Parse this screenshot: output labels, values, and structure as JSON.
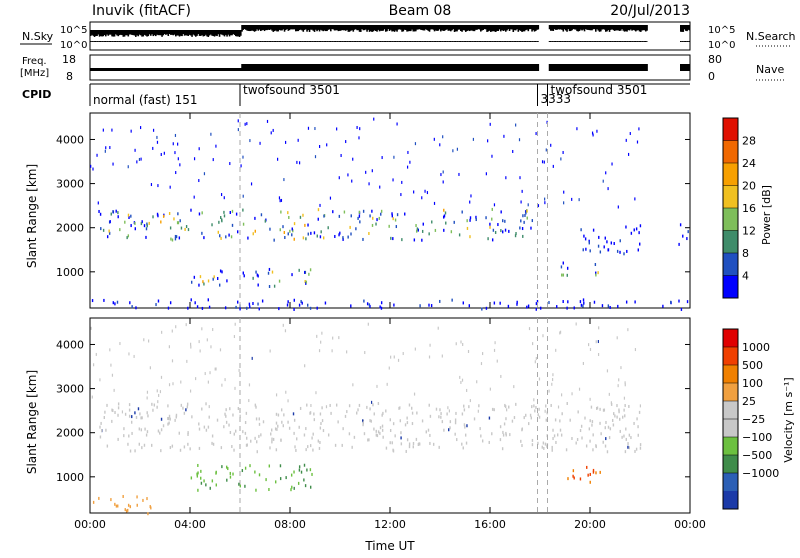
{
  "header": {
    "station": "Inuvik (fitACF)",
    "beam": "Beam 08",
    "date": "20/Jul/2013"
  },
  "top_panels": {
    "nsky_label": "N.Sky",
    "nsky_ticks": [
      "10^5",
      "10^0"
    ],
    "nsearch_label": "N.Search",
    "nsearch_ticks": [
      "10^5",
      "10^0"
    ],
    "freq_label": "Freq.",
    "freq_unit": "[MHz]",
    "freq_ticks": [
      "18",
      "8"
    ],
    "nave_label": "Nave",
    "nave_ticks": [
      "80",
      "0"
    ],
    "cpid_label": "CPID",
    "cpid_segments": [
      {
        "label": "normal (fast) 151",
        "start": 0.0,
        "end": 6.0
      },
      {
        "label": "twofsound 3501",
        "start": 6.0,
        "end": 17.9
      },
      {
        "label": "3333",
        "start": 17.9,
        "end": 18.3
      },
      {
        "label": "twofsound 3501",
        "start": 18.3,
        "end": 24.0
      }
    ]
  },
  "power_colorbar": {
    "label": "Power [dB]",
    "ticks": [
      "28",
      "24",
      "20",
      "16",
      "12",
      "8",
      "4"
    ],
    "colors": [
      "#0000ff",
      "#2050c0",
      "#3f8c6a",
      "#7ebe5a",
      "#f0c020",
      "#f7a000",
      "#f06800",
      "#e01000"
    ]
  },
  "velocity_colorbar": {
    "label": "Velocity [m s⁻¹]",
    "ticks": [
      "1000",
      "500",
      "100",
      "25",
      "−25",
      "−100",
      "−500",
      "−1000"
    ],
    "colors": [
      "#1b3aa8",
      "#2b5fb5",
      "#3f8c4a",
      "#6cc040",
      "#c8c8c8",
      "#c8c8c8",
      "#f0a040",
      "#f08000",
      "#f04000",
      "#e00000"
    ]
  },
  "chart_data": [
    {
      "type": "heatmap",
      "name_note": "power",
      "ylabel": "Slant Range [km]",
      "xlim": [
        0,
        24
      ],
      "ylim": [
        180,
        4600
      ],
      "yticks": [
        1000,
        2000,
        3000,
        4000
      ],
      "xticks": [
        "00:00",
        "04:00",
        "08:00",
        "12:00",
        "16:00",
        "20:00",
        "00:00"
      ],
      "xtick_hours": [
        0,
        4,
        8,
        12,
        16,
        20,
        24
      ],
      "events_hours": [
        6.0,
        17.9,
        18.3
      ],
      "bands": [
        {
          "t0": 0.3,
          "t1": 18.0,
          "r0": 1750,
          "r1": 2450,
          "level": "mixed"
        },
        {
          "t0": 4.0,
          "t1": 9.0,
          "r0": 700,
          "r1": 1100,
          "level": "mixed"
        },
        {
          "t0": 18.8,
          "t1": 20.6,
          "r0": 950,
          "r1": 1250,
          "level": "mixed"
        },
        {
          "t0": 19.5,
          "t1": 22.0,
          "r0": 1400,
          "r1": 2100,
          "level": "low"
        },
        {
          "t0": 23.5,
          "t1": 24.0,
          "r0": 1600,
          "r1": 2100,
          "level": "low"
        },
        {
          "t0": 0.0,
          "t1": 24.0,
          "r0": 180,
          "r1": 400,
          "level": "low"
        }
      ]
    },
    {
      "type": "heatmap",
      "name_note": "velocity",
      "ylabel": "Slant Range [km]",
      "xlabel": "Time UT",
      "xlim": [
        0,
        24
      ],
      "ylim": [
        180,
        4600
      ],
      "yticks": [
        1000,
        2000,
        3000,
        4000
      ],
      "xticks": [
        "00:00",
        "04:00",
        "08:00",
        "12:00",
        "16:00",
        "20:00",
        "00:00"
      ],
      "xtick_hours": [
        0,
        4,
        8,
        12,
        16,
        20,
        24
      ],
      "events_hours": [
        6.0,
        17.9,
        18.3
      ],
      "bands": [
        {
          "t0": 0.3,
          "t1": 22.0,
          "r0": 1600,
          "r1": 2700,
          "v": "~0 (grey)"
        },
        {
          "t0": 4.0,
          "t1": 9.0,
          "r0": 700,
          "r1": 1300,
          "v": "+100 to +500 (green)"
        },
        {
          "t0": 18.8,
          "t1": 20.6,
          "r0": 900,
          "r1": 1300,
          "v": "-500 (orange/red)"
        },
        {
          "t0": 0.0,
          "t1": 2.5,
          "r0": 180,
          "r1": 600,
          "v": "-100 (orange)"
        }
      ]
    }
  ]
}
